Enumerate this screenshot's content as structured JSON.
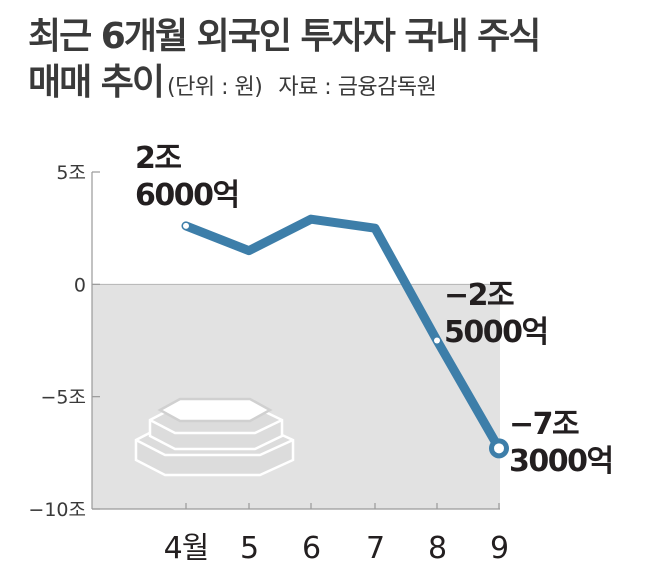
{
  "title": {
    "line1": "최근 6개월 외국인 투자자 국내 주식",
    "line2": "매매 추이",
    "unit": "(단위 : 원)",
    "source": "자료 : 금융감독원"
  },
  "colors": {
    "line": "#3d7ea9",
    "negative_area": "#e2e2e2",
    "axis": "#9a9a9a"
  },
  "icon": "stacked-coins-icon",
  "chart_data": {
    "type": "line",
    "title": "최근 6개월 외국인 투자자 국내 주식 매매 추이",
    "unit": "(단위 : 원)",
    "source": "자료 : 금융감독원",
    "categories": [
      "4월",
      "5",
      "6",
      "7",
      "8",
      "9"
    ],
    "values": [
      2.6,
      1.5,
      2.9,
      2.5,
      -2.5,
      -7.3
    ],
    "ylim": [
      -10,
      5
    ],
    "yticks": [
      5,
      0,
      -5,
      -10
    ],
    "ytick_labels": [
      "5조",
      "0",
      "−5조",
      "−10조"
    ],
    "xlabel": "",
    "ylabel": "",
    "grid": false,
    "negative_region_shaded": true,
    "annotations": [
      {
        "index": 0,
        "lines": [
          "2조",
          "6000억"
        ]
      },
      {
        "index": 4,
        "lines": [
          "−2조",
          "5000억"
        ]
      },
      {
        "index": 5,
        "lines": [
          "−7조",
          "3000억"
        ]
      }
    ]
  }
}
